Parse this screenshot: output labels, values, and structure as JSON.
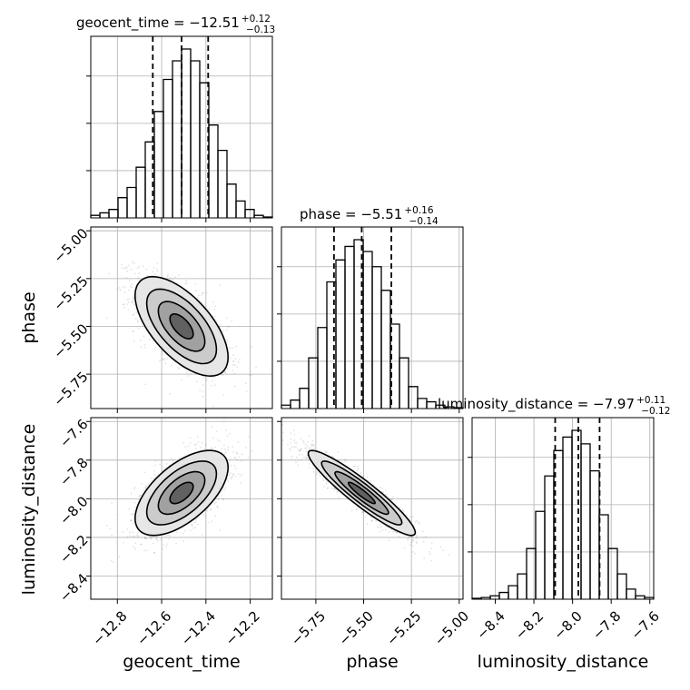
{
  "chart_data": {
    "type": "corner",
    "parameters": [
      {
        "key": "geocent_time",
        "label": "geocent_time",
        "title": "geocent_time = −12.51",
        "err_plus": "+0.12",
        "err_minus": "−0.13",
        "median": -12.51,
        "q16": -12.64,
        "q84": -12.39,
        "range": [
          -12.92,
          -12.1
        ],
        "ticks": [
          -12.8,
          -12.6,
          -12.4,
          -12.2
        ],
        "tick_labels": [
          "−12.8",
          "−12.6",
          "−12.4",
          "−12.2"
        ],
        "hist": {
          "bin_edges": [
            -12.92,
            -12.879,
            -12.838,
            -12.797,
            -12.756,
            -12.715,
            -12.674,
            -12.633,
            -12.592,
            -12.551,
            -12.51,
            -12.469,
            -12.428,
            -12.387,
            -12.346,
            -12.305,
            -12.264,
            -12.223,
            -12.182,
            -12.141,
            -12.1
          ],
          "counts": [
            0.015,
            0.03,
            0.05,
            0.12,
            0.18,
            0.3,
            0.45,
            0.63,
            0.82,
            0.93,
            1.0,
            0.93,
            0.8,
            0.55,
            0.4,
            0.2,
            0.1,
            0.05,
            0.015,
            0.005
          ]
        }
      },
      {
        "key": "phase",
        "label": "phase",
        "title": "phase = −5.51",
        "err_plus": "+0.16",
        "err_minus": "−0.14",
        "median": -5.51,
        "q16": -5.655,
        "q84": -5.355,
        "range": [
          -5.93,
          -4.98
        ],
        "ticks": [
          -5.75,
          -5.5,
          -5.25,
          -5.0
        ],
        "tick_labels": [
          "−5.75",
          "−5.50",
          "−5.25",
          "−5.00"
        ],
        "hist": {
          "bin_edges": [
            -5.93,
            -5.8825,
            -5.835,
            -5.7875,
            -5.74,
            -5.6925,
            -5.645,
            -5.5975,
            -5.55,
            -5.5025,
            -5.455,
            -5.4075,
            -5.36,
            -5.3125,
            -5.265,
            -5.2175,
            -5.17,
            -5.1225,
            -5.075,
            -5.0275,
            -4.98
          ],
          "counts": [
            0.02,
            0.05,
            0.12,
            0.3,
            0.48,
            0.75,
            0.88,
            0.96,
            1.0,
            0.93,
            0.84,
            0.7,
            0.5,
            0.3,
            0.13,
            0.06,
            0.04,
            0.02,
            0.01,
            0.005
          ]
        }
      },
      {
        "key": "luminosity_distance",
        "label": "luminosity_distance",
        "title": "luminosity_distance = −7.97",
        "err_plus": "+0.11",
        "err_minus": "−0.12",
        "median": -7.97,
        "q16": -8.09,
        "q84": -7.86,
        "range": [
          -8.52,
          -7.58
        ],
        "ticks": [
          -8.4,
          -8.2,
          -8.0,
          -7.8,
          -7.6
        ],
        "tick_labels": [
          "−8.4",
          "−8.2",
          "−8.0",
          "−7.8",
          "−7.6"
        ],
        "hist": {
          "bin_edges": [
            -8.52,
            -8.473,
            -8.426,
            -8.379,
            -8.332,
            -8.285,
            -8.238,
            -8.191,
            -8.144,
            -8.097,
            -8.05,
            -8.003,
            -7.956,
            -7.909,
            -7.862,
            -7.815,
            -7.768,
            -7.721,
            -7.674,
            -7.627,
            -7.58
          ],
          "counts": [
            0.005,
            0.01,
            0.02,
            0.04,
            0.08,
            0.15,
            0.3,
            0.52,
            0.73,
            0.88,
            0.96,
            1.0,
            0.92,
            0.76,
            0.5,
            0.3,
            0.15,
            0.06,
            0.02,
            0.01
          ]
        }
      }
    ],
    "pairs": [
      {
        "x": "geocent_time",
        "y": "phase",
        "mean": [
          -12.51,
          -5.5
        ],
        "sd": [
          0.105,
          0.13
        ],
        "rho": -0.62
      },
      {
        "x": "geocent_time",
        "y": "luminosity_distance",
        "mean": [
          -12.51,
          -7.97
        ],
        "sd": [
          0.105,
          0.11
        ],
        "rho": 0.6
      },
      {
        "x": "phase",
        "y": "luminosity_distance",
        "mean": [
          -5.51,
          -7.97
        ],
        "sd": [
          0.14,
          0.11
        ],
        "rho": -0.93
      }
    ],
    "grid": true,
    "quantile_lines": "dashed",
    "colors": {
      "hist": "#000000",
      "contour": "#000000",
      "grid": "#b0b0b0",
      "samples": "#808080"
    }
  }
}
